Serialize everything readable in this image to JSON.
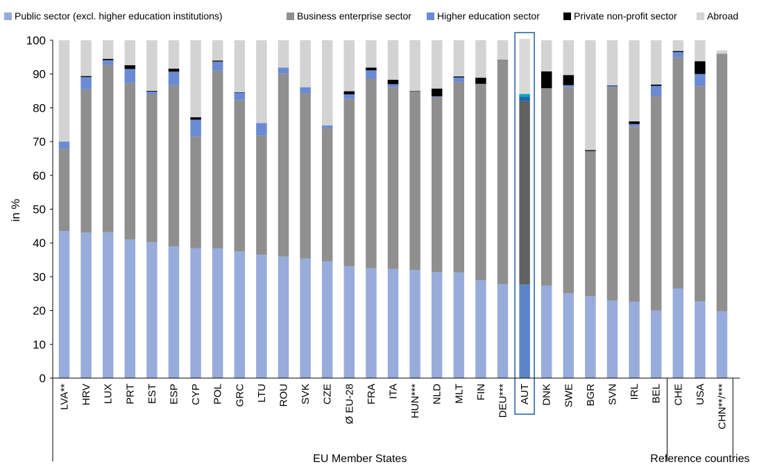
{
  "chart_data": {
    "type": "bar",
    "stacked": true,
    "ylabel": "in %",
    "ylim": [
      0,
      100
    ],
    "yticks": [
      0,
      10,
      20,
      30,
      40,
      50,
      60,
      70,
      80,
      90,
      100
    ],
    "grid": false,
    "legend_position": "top",
    "categories": [
      "LVA**",
      "HRV",
      "LUX",
      "PRT",
      "EST",
      "ESP",
      "CYP",
      "POL",
      "GRC",
      "LTU",
      "ROU",
      "SVK",
      "CZE",
      "Ø EU-28",
      "FRA",
      "ITA",
      "HUN***",
      "NLD",
      "MLT",
      "FIN",
      "DEU***",
      "AUT",
      "DNK",
      "SWE",
      "BGR",
      "SVN",
      "IRL",
      "BEL",
      "CHE",
      "USA",
      "CHN**/***"
    ],
    "groups": [
      {
        "label": "EU Member States",
        "from": 0,
        "to": 27
      },
      {
        "label": "Reference countries",
        "from": 28,
        "to": 30
      }
    ],
    "highlight": "AUT",
    "series": [
      {
        "name": "Public sector (excl. higher education institutions)",
        "color": "#97acdb",
        "values": [
          43.5,
          43.1,
          43.2,
          41.0,
          40.2,
          39.0,
          38.5,
          38.4,
          37.5,
          36.5,
          36.0,
          35.4,
          34.6,
          33.1,
          32.5,
          32.3,
          32.0,
          31.4,
          31.3,
          28.9,
          27.8,
          27.7,
          27.4,
          25.1,
          24.2,
          23.0,
          22.6,
          20.0,
          26.5,
          22.7,
          19.8
        ]
      },
      {
        "name": "Business enterprise sector",
        "color": "#8f8f8f",
        "values": [
          24.3,
          42.4,
          49.5,
          46.3,
          43.8,
          47.7,
          33.0,
          52.6,
          44.8,
          35.3,
          54.1,
          48.9,
          39.4,
          49.5,
          56.1,
          53.8,
          52.9,
          51.8,
          56.3,
          58.2,
          66.3,
          54.3,
          58.4,
          61.0,
          43.0,
          63.0,
          51.9,
          63.5,
          68.5,
          63.7,
          76.2
        ]
      },
      {
        "name": "Higher education sector",
        "color": "#6a8bd4",
        "values": [
          2.2,
          3.6,
          1.4,
          4.2,
          0.8,
          4.0,
          5.0,
          2.7,
          2.2,
          3.7,
          1.8,
          1.8,
          0.8,
          1.4,
          2.5,
          0.9,
          0.0,
          0.2,
          1.4,
          0.0,
          0.0,
          1.3,
          0.0,
          0.6,
          0.0,
          0.4,
          0.7,
          3.0,
          1.5,
          3.6,
          0.0
        ]
      },
      {
        "name": "Private non-profit sector",
        "color": "#000000",
        "values": [
          0.0,
          0.3,
          0.4,
          1.1,
          0.2,
          0.9,
          0.7,
          0.3,
          0.1,
          0.0,
          0.0,
          0.0,
          0.0,
          0.9,
          0.8,
          1.3,
          0.1,
          2.3,
          0.3,
          1.8,
          0.1,
          0.8,
          5.0,
          3.0,
          0.3,
          0.2,
          0.8,
          0.4,
          0.3,
          3.8,
          0.0
        ]
      },
      {
        "name": "Abroad",
        "color": "#d3d3d3",
        "values": [
          30.0,
          10.6,
          5.5,
          7.4,
          15.0,
          8.4,
          22.8,
          6.0,
          15.4,
          24.5,
          8.1,
          13.9,
          25.2,
          15.1,
          8.1,
          11.7,
          15.0,
          14.3,
          10.7,
          11.1,
          5.8,
          16.3,
          9.2,
          10.3,
          32.5,
          13.4,
          24.0,
          13.1,
          3.2,
          6.2,
          1.0
        ]
      }
    ],
    "highlight_series_colors": [
      "#5b85c6",
      "#616161",
      "#1f66b0",
      "#00a7b5",
      "#d9d9d9"
    ]
  }
}
